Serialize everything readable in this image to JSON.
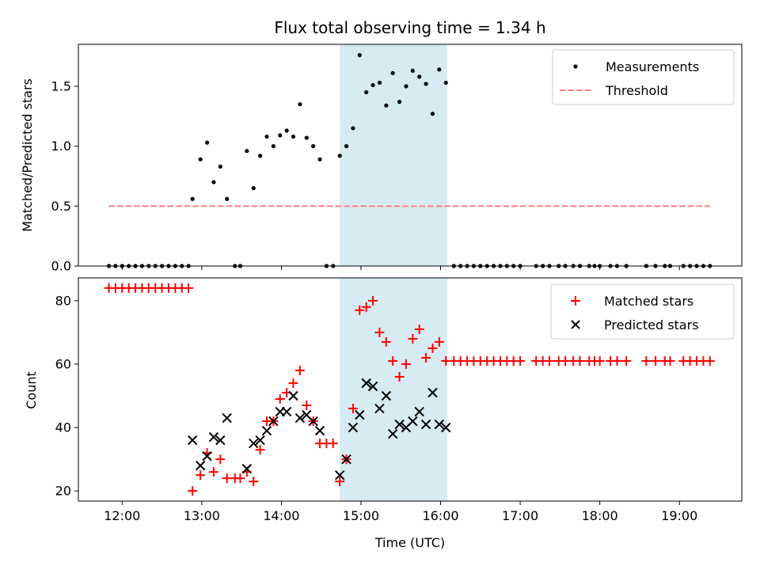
{
  "chart_data": [
    {
      "type": "scatter",
      "title": "Flux total observing time = 1.34 h",
      "ylabel": "Matched/Predicted stars",
      "xlabel": "",
      "ylim": [
        0,
        1.85
      ],
      "yticks": [
        0.0,
        0.5,
        1.0,
        1.5
      ],
      "ytick_labels": [
        "0.0",
        "0.5",
        "1.0",
        "1.5"
      ],
      "xlim": [
        "11:27",
        "19:47"
      ],
      "highlight_span": {
        "start": "14:44",
        "end": "16:05",
        "color": "#add8e6"
      },
      "legend": {
        "position": "top-right",
        "entries": [
          "Measurements",
          "Threshold"
        ]
      },
      "series": [
        {
          "name": "Measurements",
          "marker": "dot",
          "color": "#000000",
          "points": [
            [
              "11:50",
              0
            ],
            [
              "11:55",
              0
            ],
            [
              "12:00",
              0
            ],
            [
              "12:05",
              0
            ],
            [
              "12:10",
              0
            ],
            [
              "12:15",
              0
            ],
            [
              "12:20",
              0
            ],
            [
              "12:25",
              0
            ],
            [
              "12:30",
              0
            ],
            [
              "12:35",
              0
            ],
            [
              "12:40",
              0
            ],
            [
              "12:45",
              0
            ],
            [
              "12:50",
              0
            ],
            [
              "12:53",
              0.56
            ],
            [
              "12:59",
              0.89
            ],
            [
              "13:04",
              1.03
            ],
            [
              "13:09",
              0.7
            ],
            [
              "13:14",
              0.83
            ],
            [
              "13:19",
              0.56
            ],
            [
              "13:25",
              0
            ],
            [
              "13:29",
              0
            ],
            [
              "13:34",
              0.96
            ],
            [
              "13:39",
              0.65
            ],
            [
              "13:44",
              0.92
            ],
            [
              "13:49",
              1.08
            ],
            [
              "13:54",
              1.0
            ],
            [
              "13:59",
              1.09
            ],
            [
              "14:04",
              1.13
            ],
            [
              "14:09",
              1.08
            ],
            [
              "14:14",
              1.35
            ],
            [
              "14:19",
              1.07
            ],
            [
              "14:24",
              1.0
            ],
            [
              "14:29",
              0.89
            ],
            [
              "14:34",
              0
            ],
            [
              "14:39",
              0
            ],
            [
              "14:44",
              0.92
            ],
            [
              "14:49",
              1.0
            ],
            [
              "14:54",
              1.15
            ],
            [
              "14:59",
              1.76
            ],
            [
              "15:04",
              1.45
            ],
            [
              "15:09",
              1.51
            ],
            [
              "15:14",
              1.53
            ],
            [
              "15:19",
              1.34
            ],
            [
              "15:24",
              1.61
            ],
            [
              "15:29",
              1.37
            ],
            [
              "15:34",
              1.5
            ],
            [
              "15:39",
              1.63
            ],
            [
              "15:44",
              1.58
            ],
            [
              "15:49",
              1.52
            ],
            [
              "15:54",
              1.27
            ],
            [
              "15:59",
              1.64
            ],
            [
              "16:04",
              1.53
            ],
            [
              "16:10",
              0
            ],
            [
              "16:15",
              0
            ],
            [
              "16:20",
              0
            ],
            [
              "16:25",
              0
            ],
            [
              "16:30",
              0
            ],
            [
              "16:35",
              0
            ],
            [
              "16:40",
              0
            ],
            [
              "16:45",
              0
            ],
            [
              "16:50",
              0
            ],
            [
              "16:55",
              0
            ],
            [
              "17:00",
              0
            ],
            [
              "17:12",
              0
            ],
            [
              "17:17",
              0
            ],
            [
              "17:22",
              0
            ],
            [
              "17:29",
              0
            ],
            [
              "17:34",
              0
            ],
            [
              "17:40",
              0
            ],
            [
              "17:45",
              0
            ],
            [
              "17:52",
              0
            ],
            [
              "17:56",
              0
            ],
            [
              "18:00",
              0
            ],
            [
              "18:08",
              0
            ],
            [
              "18:13",
              0
            ],
            [
              "18:20",
              0
            ],
            [
              "18:35",
              0
            ],
            [
              "18:42",
              0
            ],
            [
              "18:49",
              0
            ],
            [
              "18:53",
              0
            ],
            [
              "19:03",
              0
            ],
            [
              "19:08",
              0
            ],
            [
              "19:13",
              0
            ],
            [
              "19:18",
              0
            ],
            [
              "19:23",
              0
            ]
          ]
        },
        {
          "name": "Threshold",
          "marker": "dashed-line",
          "color": "#ff7f7f",
          "points": [
            [
              "11:50",
              0.5
            ],
            [
              "19:23",
              0.5
            ]
          ]
        }
      ]
    },
    {
      "type": "scatter",
      "title": "",
      "ylabel": "Count",
      "xlabel": "Time (UTC)",
      "ylim": [
        16.8,
        87.2
      ],
      "yticks": [
        20,
        40,
        60,
        80
      ],
      "ytick_labels": [
        "20",
        "40",
        "60",
        "80"
      ],
      "xlim": [
        "11:27",
        "19:47"
      ],
      "xticks": [
        "12:00",
        "13:00",
        "14:00",
        "15:00",
        "16:00",
        "17:00",
        "18:00",
        "19:00"
      ],
      "highlight_span": {
        "start": "14:44",
        "end": "16:05",
        "color": "#add8e6"
      },
      "legend": {
        "position": "top-right",
        "entries": [
          "Matched stars",
          "Predicted stars"
        ]
      },
      "series": [
        {
          "name": "Matched stars",
          "marker": "plus",
          "color": "#ff0000",
          "points": [
            [
              "11:50",
              84
            ],
            [
              "11:55",
              84
            ],
            [
              "12:00",
              84
            ],
            [
              "12:05",
              84
            ],
            [
              "12:10",
              84
            ],
            [
              "12:15",
              84
            ],
            [
              "12:20",
              84
            ],
            [
              "12:25",
              84
            ],
            [
              "12:30",
              84
            ],
            [
              "12:35",
              84
            ],
            [
              "12:40",
              84
            ],
            [
              "12:45",
              84
            ],
            [
              "12:50",
              84
            ],
            [
              "12:53",
              20
            ],
            [
              "12:59",
              25
            ],
            [
              "13:04",
              32
            ],
            [
              "13:09",
              26
            ],
            [
              "13:14",
              30
            ],
            [
              "13:19",
              24
            ],
            [
              "13:25",
              24
            ],
            [
              "13:29",
              24
            ],
            [
              "13:34",
              26
            ],
            [
              "13:39",
              23
            ],
            [
              "13:44",
              33
            ],
            [
              "13:49",
              42
            ],
            [
              "13:54",
              42
            ],
            [
              "13:59",
              49
            ],
            [
              "14:04",
              51
            ],
            [
              "14:09",
              54
            ],
            [
              "14:14",
              58
            ],
            [
              "14:19",
              47
            ],
            [
              "14:24",
              42
            ],
            [
              "14:29",
              35
            ],
            [
              "14:34",
              35
            ],
            [
              "14:39",
              35
            ],
            [
              "14:44",
              23
            ],
            [
              "14:49",
              30
            ],
            [
              "14:54",
              46
            ],
            [
              "14:59",
              77
            ],
            [
              "15:04",
              78
            ],
            [
              "15:09",
              80
            ],
            [
              "15:14",
              70
            ],
            [
              "15:19",
              67
            ],
            [
              "15:24",
              61
            ],
            [
              "15:29",
              56
            ],
            [
              "15:34",
              60
            ],
            [
              "15:39",
              68
            ],
            [
              "15:44",
              71
            ],
            [
              "15:49",
              62
            ],
            [
              "15:54",
              65
            ],
            [
              "15:59",
              67
            ],
            [
              "16:04",
              61
            ],
            [
              "16:10",
              61
            ],
            [
              "16:15",
              61
            ],
            [
              "16:20",
              61
            ],
            [
              "16:25",
              61
            ],
            [
              "16:30",
              61
            ],
            [
              "16:35",
              61
            ],
            [
              "16:40",
              61
            ],
            [
              "16:45",
              61
            ],
            [
              "16:50",
              61
            ],
            [
              "16:55",
              61
            ],
            [
              "17:00",
              61
            ],
            [
              "17:12",
              61
            ],
            [
              "17:17",
              61
            ],
            [
              "17:22",
              61
            ],
            [
              "17:29",
              61
            ],
            [
              "17:34",
              61
            ],
            [
              "17:40",
              61
            ],
            [
              "17:45",
              61
            ],
            [
              "17:52",
              61
            ],
            [
              "17:56",
              61
            ],
            [
              "18:00",
              61
            ],
            [
              "18:08",
              61
            ],
            [
              "18:13",
              61
            ],
            [
              "18:20",
              61
            ],
            [
              "18:35",
              61
            ],
            [
              "18:42",
              61
            ],
            [
              "18:49",
              61
            ],
            [
              "18:53",
              61
            ],
            [
              "19:03",
              61
            ],
            [
              "19:08",
              61
            ],
            [
              "19:13",
              61
            ],
            [
              "19:18",
              61
            ],
            [
              "19:23",
              61
            ]
          ]
        },
        {
          "name": "Predicted stars",
          "marker": "x",
          "color": "#000000",
          "points": [
            [
              "12:53",
              36
            ],
            [
              "12:59",
              28
            ],
            [
              "13:04",
              31
            ],
            [
              "13:09",
              37
            ],
            [
              "13:14",
              36
            ],
            [
              "13:19",
              43
            ],
            [
              "13:34",
              27
            ],
            [
              "13:39",
              35
            ],
            [
              "13:44",
              36
            ],
            [
              "13:49",
              39
            ],
            [
              "13:54",
              42
            ],
            [
              "13:59",
              45
            ],
            [
              "14:04",
              45
            ],
            [
              "14:09",
              50
            ],
            [
              "14:14",
              43
            ],
            [
              "14:19",
              44
            ],
            [
              "14:24",
              42
            ],
            [
              "14:29",
              39
            ],
            [
              "14:44",
              25
            ],
            [
              "14:49",
              30
            ],
            [
              "14:54",
              40
            ],
            [
              "14:59",
              44
            ],
            [
              "15:04",
              54
            ],
            [
              "15:09",
              53
            ],
            [
              "15:14",
              46
            ],
            [
              "15:19",
              50
            ],
            [
              "15:24",
              38
            ],
            [
              "15:29",
              41
            ],
            [
              "15:34",
              40
            ],
            [
              "15:39",
              42
            ],
            [
              "15:44",
              45
            ],
            [
              "15:49",
              41
            ],
            [
              "15:54",
              51
            ],
            [
              "15:59",
              41
            ],
            [
              "16:04",
              40
            ]
          ]
        }
      ]
    }
  ]
}
